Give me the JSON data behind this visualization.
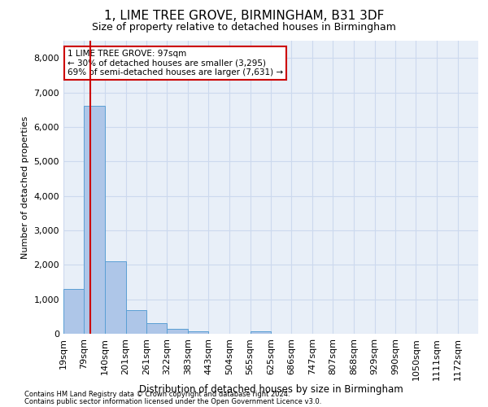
{
  "title": "1, LIME TREE GROVE, BIRMINGHAM, B31 3DF",
  "subtitle": "Size of property relative to detached houses in Birmingham",
  "xlabel": "Distribution of detached houses by size in Birmingham",
  "ylabel": "Number of detached properties",
  "footnote1": "Contains HM Land Registry data © Crown copyright and database right 2024.",
  "footnote2": "Contains public sector information licensed under the Open Government Licence v3.0.",
  "property_label": "1 LIME TREE GROVE: 97sqm",
  "annotation_line1": "← 30% of detached houses are smaller (3,295)",
  "annotation_line2": "69% of semi-detached houses are larger (7,631) →",
  "property_size_sqm": 97,
  "bar_edges": [
    19,
    79,
    140,
    201,
    261,
    322,
    383,
    443,
    504,
    565,
    625,
    686,
    747,
    807,
    868,
    929,
    990,
    1050,
    1111,
    1172,
    1232
  ],
  "bar_heights": [
    1300,
    6600,
    2100,
    680,
    300,
    135,
    75,
    0,
    0,
    75,
    0,
    0,
    0,
    0,
    0,
    0,
    0,
    0,
    0,
    0
  ],
  "bar_color": "#aec6e8",
  "bar_edge_color": "#5a9fd4",
  "vline_color": "#cc0000",
  "vline_x": 97,
  "ylim": [
    0,
    8500
  ],
  "yticks": [
    0,
    1000,
    2000,
    3000,
    4000,
    5000,
    6000,
    7000,
    8000
  ],
  "grid_color": "#ccd9ee",
  "bg_color": "#e8eff8",
  "annotation_box_color": "#cc0000",
  "title_fontsize": 11,
  "subtitle_fontsize": 9,
  "figsize": [
    6.0,
    5.0
  ],
  "dpi": 100
}
